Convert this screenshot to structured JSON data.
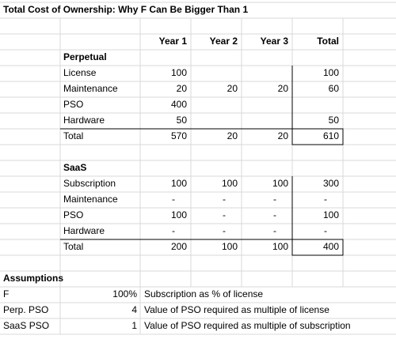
{
  "title": "Total Cost of Ownership:  Why F Can Be Bigger Than 1",
  "columns": [
    "Year 1",
    "Year 2",
    "Year 3",
    "Total"
  ],
  "perpetual": {
    "label": "Perpetual",
    "rows": [
      {
        "label": "License",
        "values": [
          100,
          null,
          null,
          100
        ]
      },
      {
        "label": "Maintenance",
        "values": [
          20,
          20,
          20,
          60
        ]
      },
      {
        "label": "PSO",
        "values": [
          400,
          null,
          null,
          null
        ]
      },
      {
        "label": "Hardware",
        "values": [
          50,
          null,
          null,
          50
        ]
      },
      {
        "label": "Total",
        "values": [
          570,
          20,
          20,
          610
        ]
      }
    ]
  },
  "saas": {
    "label": "SaaS",
    "rows": [
      {
        "label": "Subscription",
        "values": [
          100,
          100,
          100,
          300
        ]
      },
      {
        "label": "Maintenance",
        "values": [
          "-",
          "-",
          "-",
          "-"
        ]
      },
      {
        "label": "PSO",
        "values": [
          100,
          "-",
          "-",
          100
        ]
      },
      {
        "label": "Hardware",
        "values": [
          "-",
          "-",
          "-",
          "-"
        ]
      },
      {
        "label": "Total",
        "values": [
          200,
          100,
          100,
          400
        ]
      }
    ]
  },
  "assumptions": {
    "label": "Assumptions",
    "rows": [
      {
        "name": "F",
        "value": "100%",
        "description": "Subscription as % of license"
      },
      {
        "name": "Perp. PSO",
        "value": 4,
        "description": "Value of PSO required as multiple of license"
      },
      {
        "name": "SaaS PSO",
        "value": 1,
        "description": "Value of PSO required as multiple of subscription"
      }
    ]
  }
}
